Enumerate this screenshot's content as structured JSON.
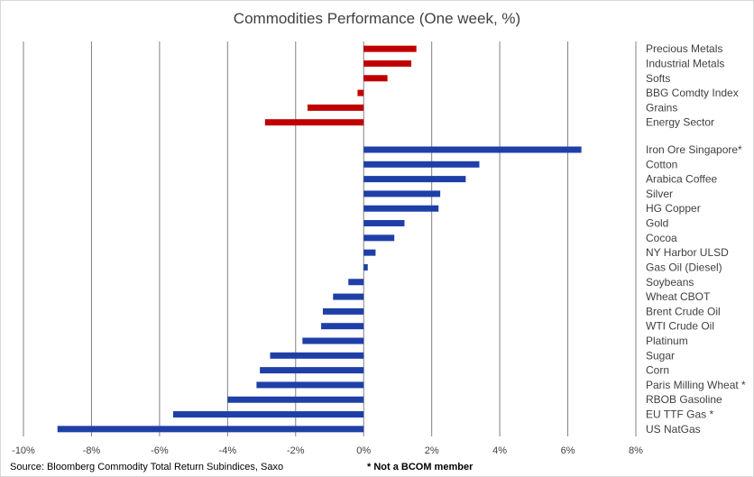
{
  "chart_data": {
    "type": "bar",
    "orientation": "horizontal",
    "title": "Commodities Performance (One week, %)",
    "xlabel": "",
    "ylabel": "",
    "xlim": [
      -10,
      8
    ],
    "x_ticks": [
      -10,
      -8,
      -6,
      -4,
      -2,
      0,
      2,
      4,
      6,
      8
    ],
    "x_tick_labels": [
      "-10%",
      "-8%",
      "-6%",
      "-4%",
      "-2%",
      "0%",
      "2%",
      "4%",
      "6%",
      "8%"
    ],
    "grid": "vertical",
    "groups": [
      {
        "color": "#c00000",
        "categories": [
          "Precious Metals",
          "Industrial Metals",
          "Softs",
          "BBG Comdty Index",
          "Grains",
          "Energy Sector"
        ],
        "values": [
          1.55,
          1.4,
          0.7,
          -0.18,
          -1.65,
          -2.9
        ]
      },
      {
        "color": "#1f3fa8",
        "categories": [
          "Iron Ore Singapore*",
          "Cotton",
          "Arabica Coffee",
          "Silver",
          "HG Copper",
          "Gold",
          "Cocoa",
          "NY Harbor ULSD",
          "Gas Oil (Diesel)",
          "Soybeans",
          "Wheat CBOT",
          "Brent Crude Oil",
          "WTI Crude Oil",
          "Platinum",
          "Sugar",
          "Corn",
          "Paris Milling Wheat *",
          "RBOB Gasoline",
          "EU TTF Gas *",
          "US NatGas"
        ],
        "values": [
          6.4,
          3.4,
          3.0,
          2.25,
          2.2,
          1.2,
          0.9,
          0.35,
          0.12,
          -0.45,
          -0.9,
          -1.2,
          -1.25,
          -1.8,
          -2.75,
          -3.05,
          -3.15,
          -4.0,
          -5.6,
          -9.0
        ]
      }
    ]
  },
  "footer": {
    "source": "Source: Bloomberg Commodity Total Return Subindices, Saxo",
    "note": "* Not a BCOM member"
  },
  "colors": {
    "sector_bars": "#c00000",
    "commodity_bars": "#1f3fa8",
    "grid": "#808080",
    "text": "#404040"
  }
}
